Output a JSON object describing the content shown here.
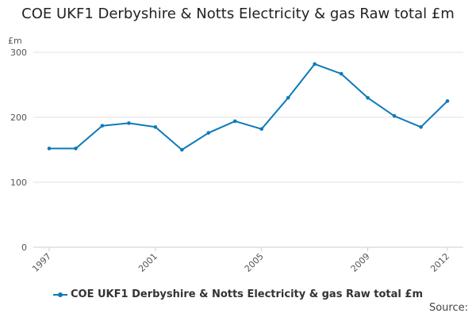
{
  "chart_data": {
    "type": "line",
    "title": "COE UKF1 Derbyshire & Notts Electricity & gas Raw total £m",
    "ylabel": "£m",
    "xlabel": "",
    "ylim": [
      0,
      300
    ],
    "yticks": [
      0,
      100,
      200,
      300
    ],
    "xticks": [
      1997,
      2001,
      2005,
      2009,
      2012
    ],
    "grid": true,
    "legend_position": "bottom",
    "color": "#0e7ab8",
    "series": [
      {
        "name": "COE UKF1 Derbyshire & Notts Electricity & gas Raw total £m",
        "x": [
          1997,
          1998,
          1999,
          2000,
          2001,
          2002,
          2003,
          2004,
          2005,
          2006,
          2007,
          2008,
          2009,
          2010,
          2011,
          2012
        ],
        "values": [
          152,
          152,
          187,
          191,
          185,
          150,
          176,
          194,
          182,
          230,
          282,
          267,
          230,
          202,
          185,
          225
        ]
      }
    ]
  },
  "footer": {
    "source_label": "Source:"
  }
}
